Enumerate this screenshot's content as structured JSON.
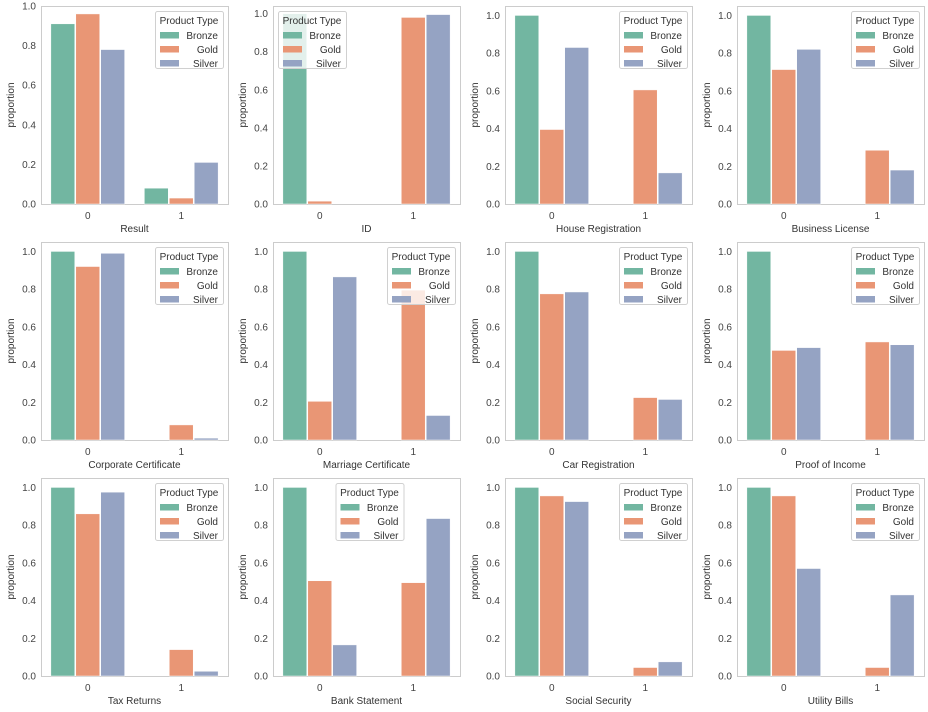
{
  "chart_data": {
    "type": "bar",
    "layout": "3x4 grid of grouped bar charts",
    "ylabel": "proportion",
    "categories": [
      "0",
      "1"
    ],
    "hue_title": "Product Type",
    "hue_levels": [
      "Bronze",
      "Gold",
      "Silver"
    ],
    "colors": {
      "Bronze": "#72b6a1",
      "Gold": "#e99675",
      "Silver": "#95a3c3"
    },
    "yticks": [
      "0.0",
      "0.2",
      "0.4",
      "0.6",
      "0.8",
      "1.0"
    ],
    "panels": [
      {
        "xlabel": "Result",
        "ylim": [
          0,
          1.0
        ],
        "legend": "top-right",
        "series": [
          {
            "name": "Bronze",
            "values": [
              0.91,
              0.08
            ]
          },
          {
            "name": "Gold",
            "values": [
              0.96,
              0.03
            ]
          },
          {
            "name": "Silver",
            "values": [
              0.78,
              0.21
            ]
          }
        ]
      },
      {
        "xlabel": "ID",
        "ylim": [
          0,
          1.04
        ],
        "legend": "top-left",
        "series": [
          {
            "name": "Bronze",
            "values": [
              1.0,
              0.0
            ]
          },
          {
            "name": "Gold",
            "values": [
              0.015,
              0.98
            ]
          },
          {
            "name": "Silver",
            "values": [
              0.0,
              0.995
            ]
          }
        ]
      },
      {
        "xlabel": "House Registration",
        "ylim": [
          0,
          1.05
        ],
        "legend": "top-right",
        "series": [
          {
            "name": "Bronze",
            "values": [
              1.0,
              0.0
            ]
          },
          {
            "name": "Gold",
            "values": [
              0.395,
              0.605
            ]
          },
          {
            "name": "Silver",
            "values": [
              0.83,
              0.165
            ]
          }
        ]
      },
      {
        "xlabel": "Business License",
        "ylim": [
          0,
          1.05
        ],
        "legend": "top-right",
        "series": [
          {
            "name": "Bronze",
            "values": [
              1.0,
              0.0
            ]
          },
          {
            "name": "Gold",
            "values": [
              0.713,
              0.285
            ]
          },
          {
            "name": "Silver",
            "values": [
              0.82,
              0.18
            ]
          }
        ]
      },
      {
        "xlabel": "Corporate Certificate",
        "ylim": [
          0,
          1.05
        ],
        "legend": "top-right",
        "series": [
          {
            "name": "Bronze",
            "values": [
              1.0,
              0.0
            ]
          },
          {
            "name": "Gold",
            "values": [
              0.92,
              0.08
            ]
          },
          {
            "name": "Silver",
            "values": [
              0.99,
              0.01
            ]
          }
        ]
      },
      {
        "xlabel": "Marriage Certificate",
        "ylim": [
          0,
          1.05
        ],
        "legend": "top-right",
        "series": [
          {
            "name": "Bronze",
            "values": [
              1.0,
              0.0
            ]
          },
          {
            "name": "Gold",
            "values": [
              0.205,
              0.795
            ]
          },
          {
            "name": "Silver",
            "values": [
              0.865,
              0.13
            ]
          }
        ]
      },
      {
        "xlabel": "Car Registration",
        "ylim": [
          0,
          1.05
        ],
        "legend": "top-right",
        "series": [
          {
            "name": "Bronze",
            "values": [
              1.0,
              0.0
            ]
          },
          {
            "name": "Gold",
            "values": [
              0.775,
              0.225
            ]
          },
          {
            "name": "Silver",
            "values": [
              0.785,
              0.215
            ]
          }
        ]
      },
      {
        "xlabel": "Proof of Income",
        "ylim": [
          0,
          1.05
        ],
        "legend": "top-right",
        "series": [
          {
            "name": "Bronze",
            "values": [
              1.0,
              0.0
            ]
          },
          {
            "name": "Gold",
            "values": [
              0.475,
              0.52
            ]
          },
          {
            "name": "Silver",
            "values": [
              0.49,
              0.505
            ]
          }
        ]
      },
      {
        "xlabel": "Tax Returns",
        "ylim": [
          0,
          1.05
        ],
        "legend": "top-right",
        "series": [
          {
            "name": "Bronze",
            "values": [
              1.0,
              0.0
            ]
          },
          {
            "name": "Gold",
            "values": [
              0.86,
              0.14
            ]
          },
          {
            "name": "Silver",
            "values": [
              0.975,
              0.025
            ]
          }
        ]
      },
      {
        "xlabel": "Bank Statement",
        "ylim": [
          0,
          1.05
        ],
        "legend": "top-center",
        "series": [
          {
            "name": "Bronze",
            "values": [
              1.0,
              0.0
            ]
          },
          {
            "name": "Gold",
            "values": [
              0.505,
              0.495
            ]
          },
          {
            "name": "Silver",
            "values": [
              0.165,
              0.835
            ]
          }
        ]
      },
      {
        "xlabel": "Social Security",
        "ylim": [
          0,
          1.05
        ],
        "legend": "top-right",
        "series": [
          {
            "name": "Bronze",
            "values": [
              1.0,
              0.0
            ]
          },
          {
            "name": "Gold",
            "values": [
              0.955,
              0.045
            ]
          },
          {
            "name": "Silver",
            "values": [
              0.925,
              0.075
            ]
          }
        ]
      },
      {
        "xlabel": "Utility Bills",
        "ylim": [
          0,
          1.05
        ],
        "legend": "top-right",
        "series": [
          {
            "name": "Bronze",
            "values": [
              1.0,
              0.0
            ]
          },
          {
            "name": "Gold",
            "values": [
              0.955,
              0.045
            ]
          },
          {
            "name": "Silver",
            "values": [
              0.57,
              0.43
            ]
          }
        ]
      }
    ]
  }
}
